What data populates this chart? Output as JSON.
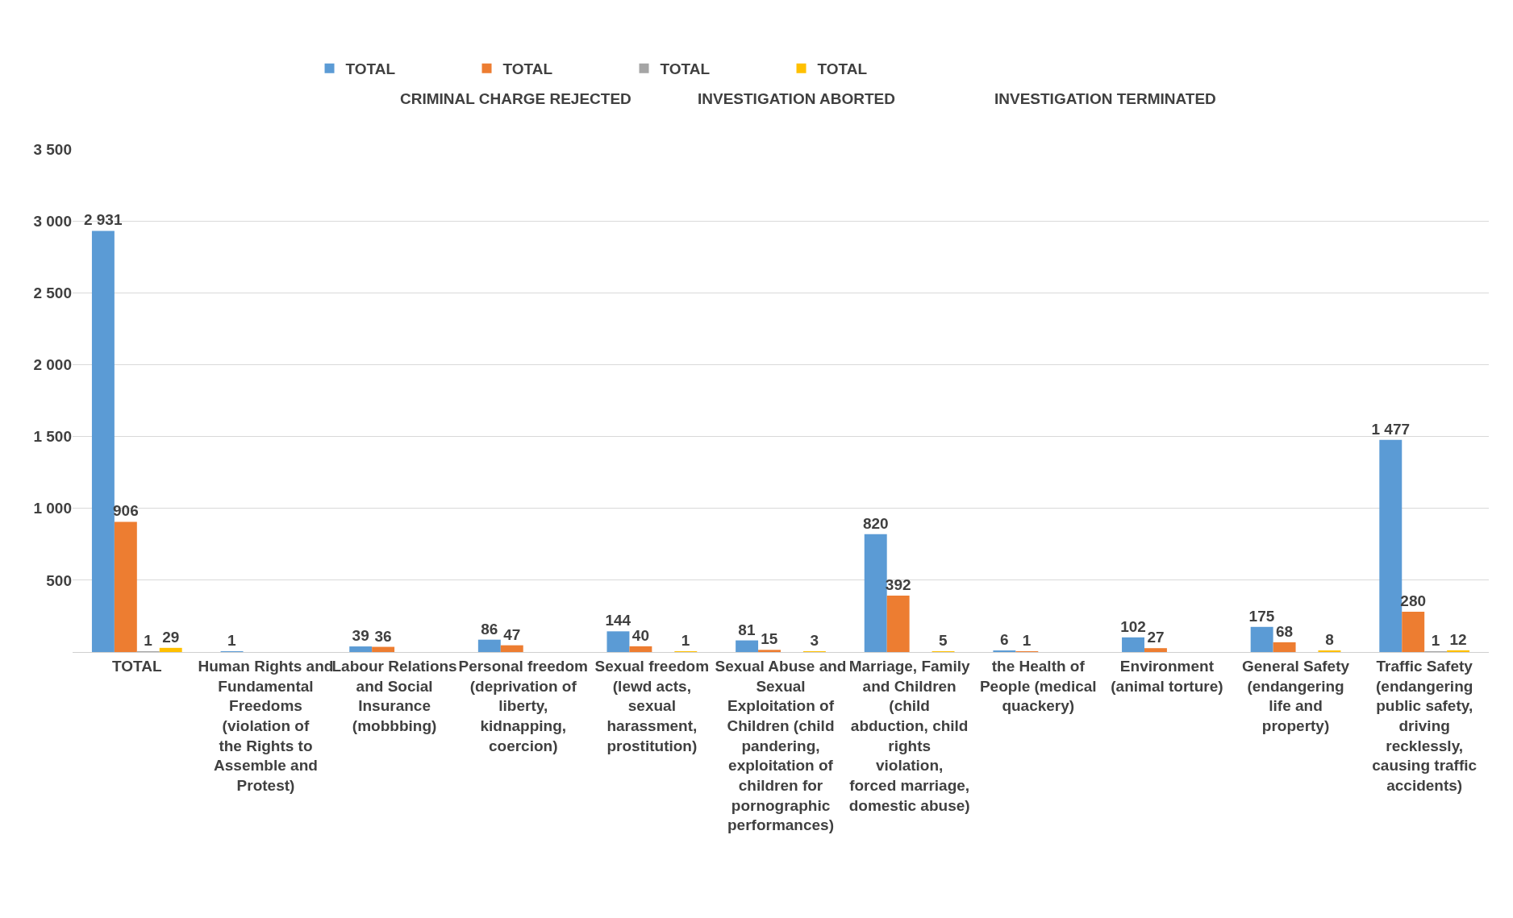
{
  "chart_data": {
    "type": "bar",
    "categories": [
      "TOTAL",
      "Human Rights and Fundamental Freedoms (violation of the Rights to Assemble and Protest)",
      "Labour Relations and Social Insurance (mobbbing)",
      "Personal freedom (deprivation of liberty, kidnapping, coercion)",
      "Sexual freedom (lewd acts, sexual harassment, prostitution)",
      "Sexual Abuse and Sexual Exploitation of Children (child pandering, exploitation of children for pornographic performances)",
      "Marriage, Family and Children (child abduction, child rights violation, forced marriage, domestic abuse)",
      "the Health of People (medical quackery)",
      "Environment (animal torture)",
      "General Safety (endangering life and property)",
      "Traffic Safety (endangering public safety, driving recklessly, causing traffic accidents)"
    ],
    "series": [
      {
        "name": "TOTAL",
        "color": "#5b9bd5",
        "values": [
          2931,
          1,
          39,
          86,
          144,
          81,
          820,
          6,
          102,
          175,
          1477
        ],
        "value_labels": [
          "2 931",
          "1",
          "39",
          "86",
          "144",
          "81",
          "820",
          "6",
          "102",
          "175",
          "1 477"
        ]
      },
      {
        "name": "TOTAL",
        "color": "#ed7d31",
        "values": [
          906,
          null,
          36,
          47,
          40,
          15,
          392,
          1,
          27,
          68,
          280
        ],
        "value_labels": [
          "906",
          null,
          "36",
          "47",
          "40",
          "15",
          "392",
          "1",
          "27",
          "68",
          "280"
        ]
      },
      {
        "name": "TOTAL",
        "color": "#a5a5a5",
        "values": [
          1,
          null,
          null,
          null,
          null,
          null,
          null,
          null,
          null,
          null,
          1
        ],
        "value_labels": [
          "1",
          null,
          null,
          null,
          null,
          null,
          null,
          null,
          null,
          null,
          "1"
        ]
      },
      {
        "name": "TOTAL",
        "color": "#ffc000",
        "values": [
          29,
          null,
          null,
          null,
          1,
          3,
          5,
          null,
          null,
          8,
          12
        ],
        "value_labels": [
          "29",
          null,
          null,
          null,
          "1",
          "3",
          "5",
          null,
          null,
          "8",
          "12"
        ]
      }
    ],
    "annotations": [
      "CRIMINAL CHARGE REJECTED",
      "INVESTIGATION ABORTED",
      "INVESTIGATION TERMINATED"
    ],
    "ylim": [
      0,
      3500
    ],
    "yticks": [
      {
        "value": 0,
        "label": null
      },
      {
        "value": 500,
        "label": "500"
      },
      {
        "value": 1000,
        "label": "1 000"
      },
      {
        "value": 1500,
        "label": "1 500"
      },
      {
        "value": 2000,
        "label": "2 000"
      },
      {
        "value": 2500,
        "label": "2 500"
      },
      {
        "value": 3000,
        "label": "3 000"
      },
      {
        "value": 3500,
        "label": "3 500"
      }
    ],
    "grid": "y",
    "legend": "top"
  }
}
